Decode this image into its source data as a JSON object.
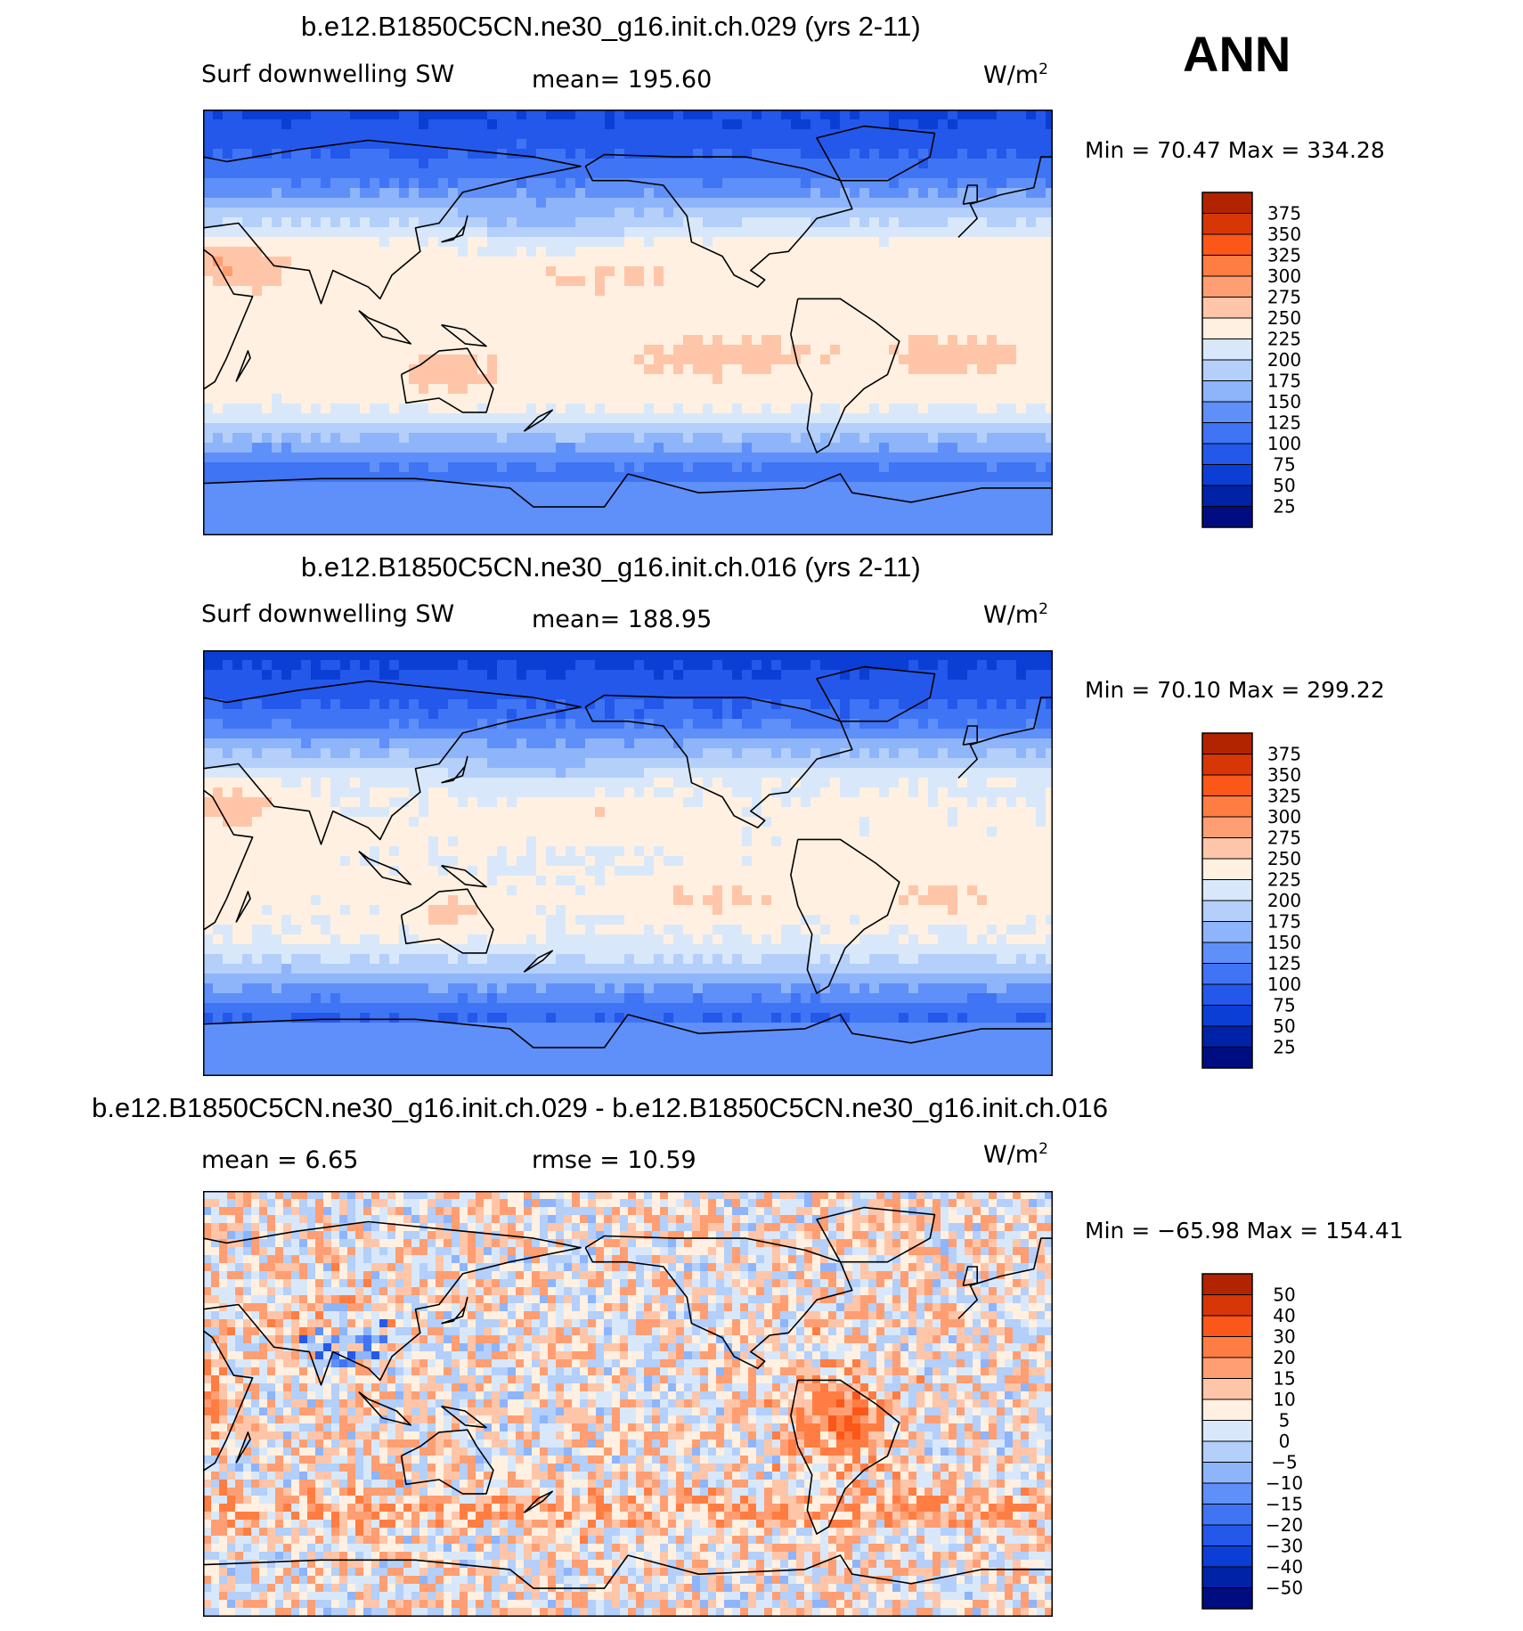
{
  "season": "ANN",
  "panels": [
    {
      "title": "b.e12.B1850C5CN.ne30_g16.init.ch.029 (yrs 2-11)",
      "left_label": "Surf downwelling SW",
      "center_label": "mean=  195.60",
      "units": "W/m",
      "units_sup": "2",
      "minmax": "Min =   70.47 Max  =  334.28",
      "colorbar_ticks": [
        "375",
        "350",
        "325",
        "300",
        "275",
        "250",
        "225",
        "200",
        "175",
        "150",
        "125",
        "100",
        "75",
        "50",
        "25"
      ],
      "colors": [
        "#7f0000",
        "#b22400",
        "#d73606",
        "#fa5719",
        "#ff7d42",
        "#ff9e72",
        "#ffc5a8",
        "#fff0e1",
        "#d8e8fa",
        "#b3cffa",
        "#8eb4fa",
        "#5f8ff8",
        "#3f74f4",
        "#2358eb",
        "#0a3ed5",
        "#0022a6",
        "#000d80"
      ],
      "map_field": "A"
    },
    {
      "title": "b.e12.B1850C5CN.ne30_g16.init.ch.016 (yrs 2-11)",
      "left_label": "Surf downwelling SW",
      "center_label": "mean=  188.95",
      "units": "W/m",
      "units_sup": "2",
      "minmax": "Min =   70.10 Max  =  299.22",
      "colorbar_ticks": [
        "375",
        "350",
        "325",
        "300",
        "275",
        "250",
        "225",
        "200",
        "175",
        "150",
        "125",
        "100",
        "75",
        "50",
        "25"
      ],
      "colors": [
        "#7f0000",
        "#b22400",
        "#d73606",
        "#fa5719",
        "#ff7d42",
        "#ff9e72",
        "#ffc5a8",
        "#fff0e1",
        "#d8e8fa",
        "#b3cffa",
        "#8eb4fa",
        "#5f8ff8",
        "#3f74f4",
        "#2358eb",
        "#0a3ed5",
        "#0022a6",
        "#000d80"
      ],
      "map_field": "B"
    },
    {
      "title": "b.e12.B1850C5CN.ne30_g16.init.ch.029 - b.e12.B1850C5CN.ne30_g16.init.ch.016",
      "left_label": "mean =     6.65",
      "center_label": "rmse =    10.59",
      "units": "W/m",
      "units_sup": "2",
      "minmax": "Min = −65.98 Max  =  154.41",
      "colorbar_ticks": [
        "50",
        "40",
        "30",
        "20",
        "15",
        "10",
        "5",
        "0",
        "−5",
        "−10",
        "−15",
        "−20",
        "−30",
        "−40",
        "−50"
      ],
      "colors": [
        "#7f0000",
        "#b22400",
        "#d73606",
        "#fa5719",
        "#ff7d42",
        "#ff9e72",
        "#ffc5a8",
        "#fff0e1",
        "#d8e8fa",
        "#b3cffa",
        "#8eb4fa",
        "#5f8ff8",
        "#3f74f4",
        "#2358eb",
        "#0a3ed5",
        "#0022a6",
        "#000d80"
      ],
      "map_field": "D"
    }
  ]
}
